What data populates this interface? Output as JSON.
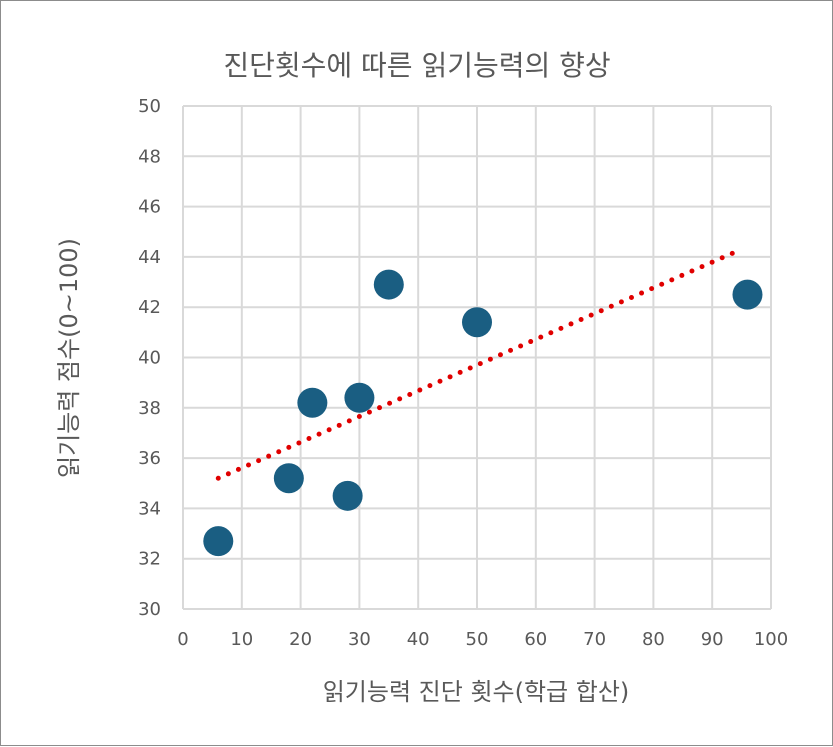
{
  "chart_data": {
    "type": "scatter",
    "title": "진단횟수에 따른 읽기능력의 향상",
    "xlabel": "읽기능력 진단 횟수(학급 합산)",
    "ylabel": "읽기능력 점수(0~100)",
    "xlim": [
      0,
      100
    ],
    "ylim": [
      30,
      50
    ],
    "x_ticks": [
      "0",
      "10",
      "20",
      "30",
      "40",
      "50",
      "60",
      "70",
      "80",
      "90",
      "100"
    ],
    "y_ticks": [
      "30",
      "32",
      "34",
      "36",
      "38",
      "40",
      "42",
      "44",
      "46",
      "48",
      "50"
    ],
    "grid": true,
    "points": [
      {
        "x": 6,
        "y": 32.7
      },
      {
        "x": 18,
        "y": 35.2
      },
      {
        "x": 22,
        "y": 38.2
      },
      {
        "x": 28,
        "y": 34.5
      },
      {
        "x": 30,
        "y": 38.4
      },
      {
        "x": 35,
        "y": 42.9
      },
      {
        "x": 50,
        "y": 41.4
      },
      {
        "x": 96,
        "y": 42.5
      }
    ],
    "trendline": {
      "type": "linear",
      "x": [
        6,
        94
      ],
      "y": [
        35.2,
        44.2
      ],
      "color": "#e00000"
    },
    "point_color": "#1a5e82"
  }
}
